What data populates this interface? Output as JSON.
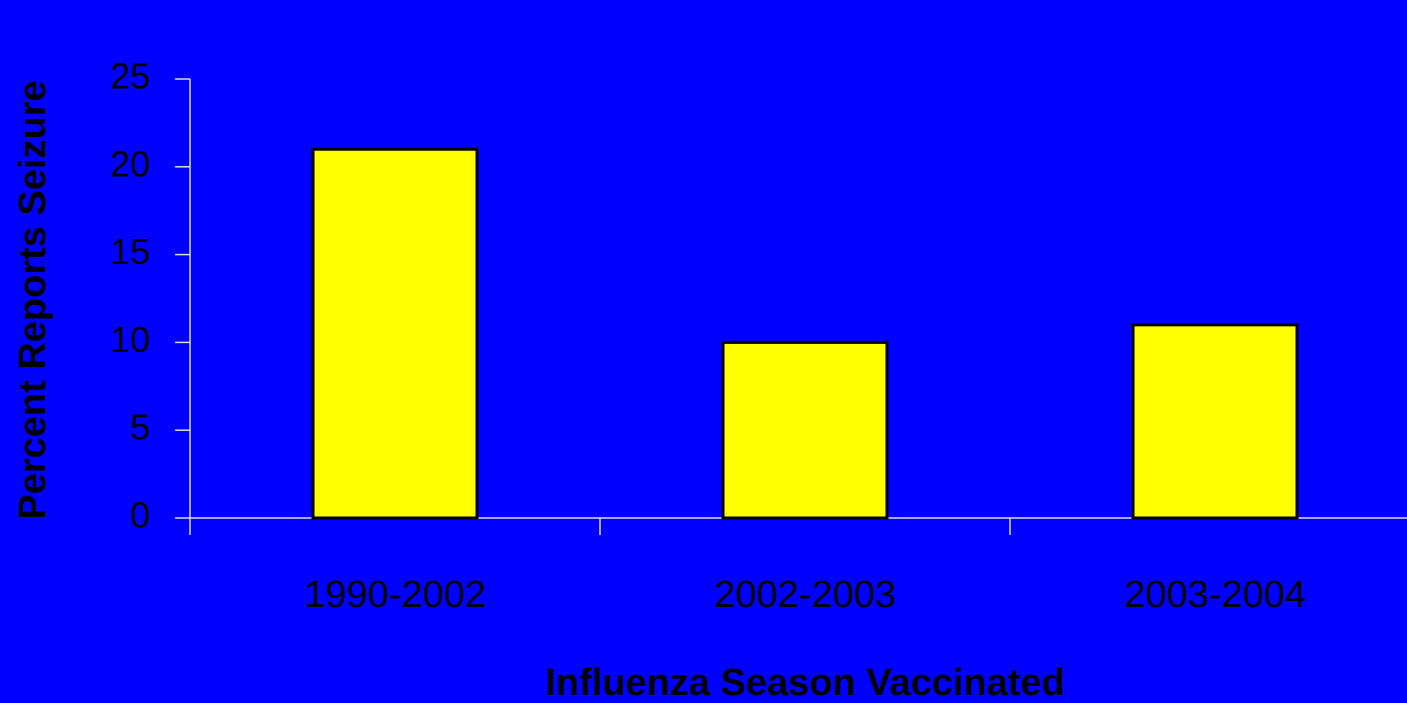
{
  "chart_data": {
    "type": "bar",
    "categories": [
      "1990-2002",
      "2002-2003",
      "2003-2004"
    ],
    "values": [
      21,
      10,
      11
    ],
    "color": "#ffff00",
    "xlabel": "Influenza Season Vaccinated",
    "ylabel": "Percent Reports Seizure",
    "ylim": [
      0,
      25
    ],
    "yticks": [
      0,
      5,
      10,
      15,
      20,
      25
    ],
    "grid": false
  }
}
